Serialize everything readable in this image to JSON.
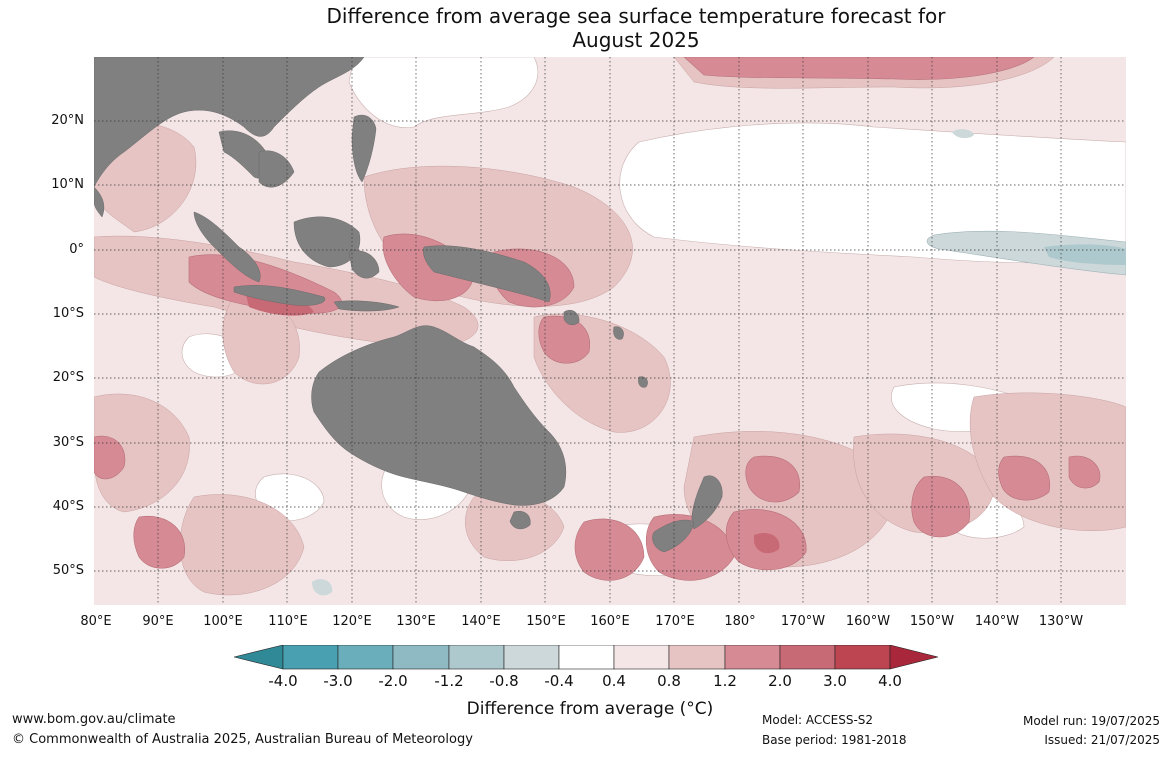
{
  "title_line1": "Difference from average sea surface temperature forecast for",
  "title_line2": "August 2025",
  "lat_labels": [
    "20°N",
    "10°N",
    "0°",
    "10°S",
    "20°S",
    "30°S",
    "40°S",
    "50°S"
  ],
  "lon_labels": [
    "80°E",
    "90°E",
    "100°E",
    "110°E",
    "120°E",
    "130°E",
    "140°E",
    "150°E",
    "160°E",
    "170°E",
    "180°",
    "170°W",
    "160°W",
    "150°W",
    "140°W",
    "130°W"
  ],
  "colorbar": {
    "title": "Difference from average (°C)",
    "ticks": [
      "-4.0",
      "-3.0",
      "-2.0",
      "-1.2",
      "-0.8",
      "-0.4",
      "0.4",
      "0.8",
      "1.2",
      "2.0",
      "3.0",
      "4.0"
    ],
    "colors": [
      "#2f8996",
      "#48a0b0",
      "#6aaebb",
      "#8fbac4",
      "#aec9cd",
      "#cdd8da",
      "#ffffff",
      "#f4e6e6",
      "#e6c4c4",
      "#d68b94",
      "#c86a75",
      "#bd4451",
      "#a8273a"
    ]
  },
  "legend_colors": {
    "land": "#808080",
    "ocean_base": "#f4e6e6",
    "gridline": "#333333"
  },
  "footer": {
    "website": "www.bom.gov.au/climate",
    "copyright": "© Commonwealth of Australia 2025, Australian Bureau of Meteorology",
    "model": "Model: ACCESS-S2",
    "base_period": "Base period: 1981-2018",
    "model_run": "Model run: 19/07/2025",
    "issued": "Issued: 21/07/2025"
  }
}
